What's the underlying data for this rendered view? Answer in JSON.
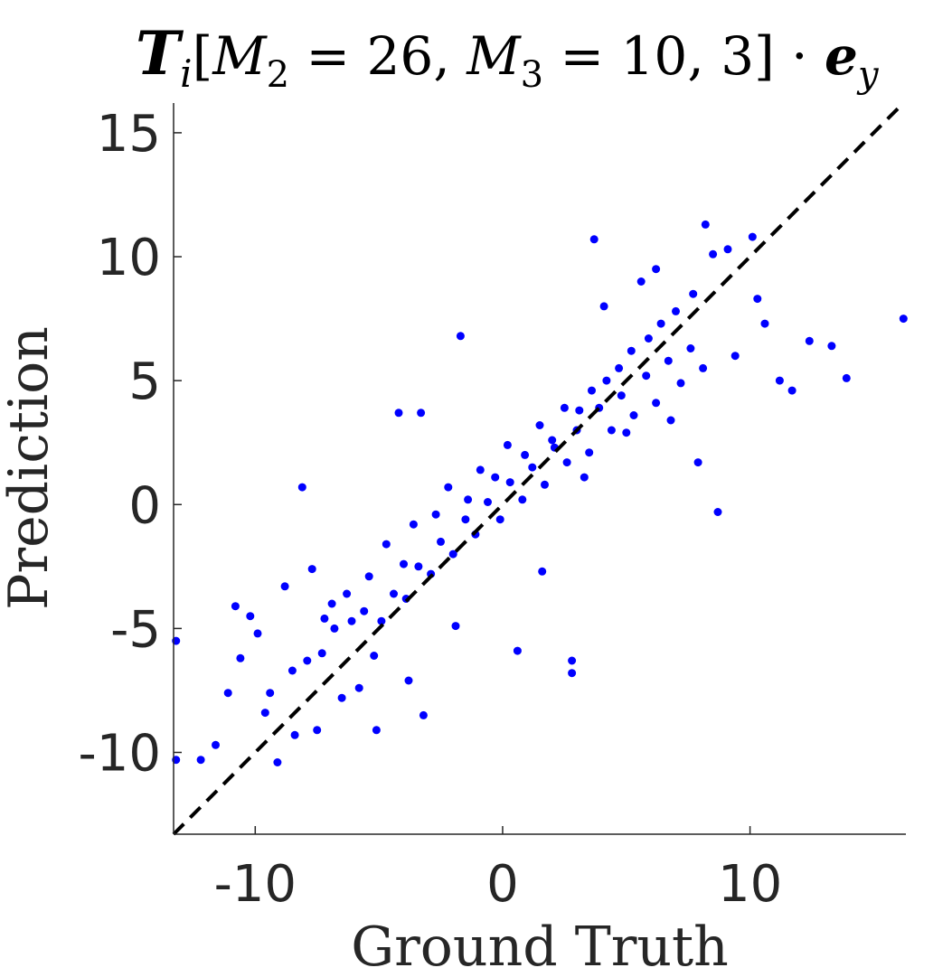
{
  "chart_data": {
    "type": "scatter",
    "title": {
      "T": "T",
      "sub_i": "i",
      "open_bracket": "[",
      "M2": "M",
      "M2_sub": "2",
      "eq1": " = 26, ",
      "M3": "M",
      "M3_sub": "3",
      "eq2": " = 10, 3]",
      "dot": " · ",
      "e": "e",
      "e_sub": "y"
    },
    "xlabel": "Ground Truth",
    "ylabel": "Prediction",
    "xlim": [
      -13.3,
      16.3
    ],
    "ylim": [
      -13.3,
      16.2
    ],
    "xticks": [
      -10,
      0,
      10
    ],
    "xtick_labels": [
      "-10",
      "0",
      "10"
    ],
    "yticks": [
      -10,
      -5,
      0,
      5,
      10,
      15
    ],
    "ytick_labels": [
      "-10",
      "-5",
      "0",
      "5",
      "10",
      "15"
    ],
    "grid": false,
    "reference_line": {
      "style": "dashed",
      "slope": 1,
      "intercept": 0,
      "color": "#000000"
    },
    "marker_color": "#0000ff",
    "x": [
      -13.2,
      -13.2,
      -12.2,
      -11.6,
      -11.1,
      -10.6,
      -10.2,
      -9.6,
      -9.1,
      -8.4,
      -8.1,
      -7.5,
      -7.2,
      -6.5,
      -5.8,
      -5.1,
      -4.2,
      -3.3,
      -3.2,
      -1.7,
      0.6,
      2.8,
      2.8,
      3.7,
      4.1,
      5.6,
      6.2,
      8.2,
      8.5,
      8.7,
      9.1,
      10.1,
      10.3,
      11.2,
      11.7,
      12.4,
      13.3,
      13.9,
      16.2,
      -9.4,
      -8.5,
      -7.9,
      -7.3,
      -6.8,
      -6.1,
      -5.6,
      -4.9,
      -4.4,
      -3.9,
      -3.4,
      -2.9,
      -2.5,
      -2.0,
      -1.5,
      -1.1,
      -0.6,
      -0.1,
      0.3,
      0.8,
      1.2,
      1.7,
      2.1,
      2.6,
      3.0,
      3.5,
      3.9,
      4.4,
      4.8,
      5.3,
      5.8,
      6.2,
      6.7,
      7.2,
      7.6,
      8.1,
      -6.3,
      -5.4,
      -4.7,
      -4.0,
      -3.6,
      -2.7,
      -2.2,
      -1.4,
      -0.9,
      -0.3,
      0.2,
      0.9,
      1.5,
      2.0,
      2.5,
      3.1,
      3.6,
      4.2,
      4.7,
      5.2,
      5.9,
      6.4,
      7.0,
      7.7,
      -10.8,
      -9.9,
      -8.8,
      -7.7,
      -6.9,
      -5.2,
      -3.8,
      -1.9,
      1.6,
      3.3,
      5.0,
      6.8,
      7.9,
      9.4,
      10.6
    ],
    "y": [
      -5.5,
      -10.3,
      -10.3,
      -9.7,
      -7.6,
      -6.2,
      -4.5,
      -8.4,
      -10.4,
      -9.3,
      0.7,
      -9.1,
      -4.6,
      -7.8,
      -7.4,
      -9.1,
      3.7,
      3.7,
      -8.5,
      6.8,
      -5.9,
      -6.8,
      -6.3,
      10.7,
      8.0,
      9.0,
      9.5,
      11.3,
      10.1,
      -0.3,
      10.3,
      10.8,
      8.3,
      5.0,
      4.6,
      6.6,
      6.4,
      5.1,
      7.5,
      -7.6,
      -6.7,
      -6.3,
      -6.0,
      -5.0,
      -4.7,
      -4.3,
      -4.7,
      -3.6,
      -3.8,
      -2.5,
      -2.8,
      -1.5,
      -2.0,
      -0.6,
      -1.2,
      0.1,
      -0.6,
      0.9,
      0.2,
      1.5,
      0.8,
      2.3,
      1.7,
      3.0,
      2.1,
      3.9,
      3.0,
      4.4,
      3.6,
      5.2,
      4.1,
      5.8,
      4.9,
      6.3,
      5.5,
      -3.6,
      -2.9,
      -1.6,
      -2.4,
      -0.8,
      -0.4,
      0.7,
      0.2,
      1.4,
      1.1,
      2.4,
      2.0,
      3.2,
      2.6,
      3.9,
      3.8,
      4.6,
      5.0,
      5.5,
      6.2,
      6.7,
      7.3,
      7.8,
      8.5,
      -4.1,
      -5.2,
      -3.3,
      -2.6,
      -4.0,
      -6.1,
      -7.1,
      -4.9,
      -2.7,
      1.1,
      2.9,
      3.4,
      1.7,
      6.0,
      7.3
    ]
  }
}
